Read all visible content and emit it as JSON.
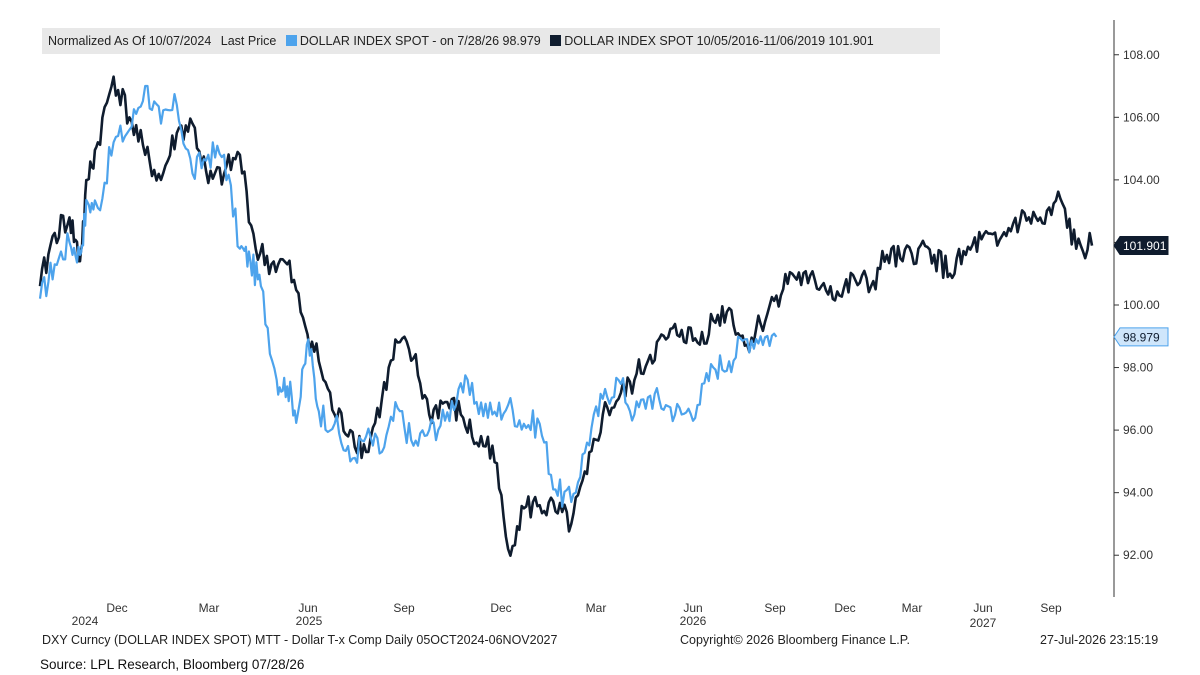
{
  "legend": {
    "header": "Normalized As Of 10/07/2024",
    "field": "Last Price",
    "items": [
      {
        "label": "DOLLAR INDEX SPOT -  on 7/28/26 98.979",
        "color": "#4da3ec"
      },
      {
        "label": "DOLLAR INDEX SPOT 10/05/2016-11/06/2019 101.901",
        "color": "#0f1c2e"
      }
    ]
  },
  "chart_data": {
    "type": "line",
    "x_ticks": [
      "Dec",
      "Mar",
      "Jun",
      "Sep",
      "Dec",
      "Mar",
      "Jun",
      "Sep",
      "Dec",
      "Mar",
      "Jun",
      "Sep"
    ],
    "year_labels": [
      "2024",
      "2025",
      "2026",
      "2027"
    ],
    "y_ticks": [
      "92.00",
      "94.00",
      "96.00",
      "98.00",
      "100.00",
      "102.00",
      "104.00",
      "106.00",
      "108.00"
    ],
    "ylim": [
      90.7,
      109.2
    ],
    "xlim": [
      0,
      1
    ],
    "y_axis_position": "right",
    "grid": false,
    "legend_position": "top",
    "series": [
      {
        "name": "DOLLAR INDEX SPOT -  on 7/28/26 98.979",
        "color": "#4da3ec",
        "last_value_label": "98.979",
        "x": [
          0.0,
          0.014,
          0.028,
          0.038,
          0.045,
          0.055,
          0.07,
          0.085,
          0.1,
          0.115,
          0.13,
          0.145,
          0.16,
          0.175,
          0.19,
          0.2,
          0.21,
          0.225,
          0.235,
          0.245,
          0.255,
          0.265,
          0.28,
          0.295,
          0.31,
          0.325,
          0.34,
          0.355,
          0.37,
          0.385,
          0.4,
          0.415,
          0.43,
          0.445,
          0.46,
          0.475,
          0.49,
          0.505,
          0.52,
          0.535,
          0.55,
          0.565,
          0.58,
          0.595,
          0.61,
          0.625,
          0.64,
          0.655,
          0.67,
          0.685,
          0.7
        ],
        "values": [
          100.2,
          101.3,
          102.0,
          101.6,
          103.3,
          103.1,
          105.2,
          105.6,
          107.0,
          105.8,
          106.4,
          104.2,
          104.8,
          104.8,
          101.8,
          101.4,
          100.6,
          97.6,
          97.4,
          96.5,
          98.9,
          96.6,
          96.2,
          95.0,
          95.8,
          95.3,
          96.7,
          95.5,
          96.0,
          96.3,
          97.5,
          96.9,
          96.5,
          96.8,
          96.2,
          96.2,
          94.1,
          93.7,
          95.6,
          97.0,
          97.6,
          96.5,
          97.1,
          96.8,
          96.5,
          96.8,
          98.0,
          98.2,
          98.9,
          99.0,
          98.98
        ]
      },
      {
        "name": "DOLLAR INDEX SPOT 10/05/2016-11/06/2019 101.901",
        "color": "#0f1c2e",
        "last_value_label": "101.901",
        "x": [
          0.0,
          0.014,
          0.028,
          0.038,
          0.045,
          0.055,
          0.07,
          0.085,
          0.1,
          0.115,
          0.13,
          0.145,
          0.16,
          0.175,
          0.19,
          0.205,
          0.22,
          0.235,
          0.25,
          0.265,
          0.28,
          0.295,
          0.31,
          0.325,
          0.34,
          0.355,
          0.37,
          0.385,
          0.4,
          0.415,
          0.43,
          0.445,
          0.46,
          0.475,
          0.49,
          0.505,
          0.52,
          0.535,
          0.55,
          0.565,
          0.58,
          0.595,
          0.61,
          0.625,
          0.64,
          0.655,
          0.67,
          0.685,
          0.7,
          0.715,
          0.73,
          0.745,
          0.76,
          0.775,
          0.79,
          0.805,
          0.82,
          0.835,
          0.85,
          0.865,
          0.88,
          0.895,
          0.91,
          0.925,
          0.94,
          0.955,
          0.97,
          0.985,
          1.0
        ],
        "values": [
          100.6,
          102.3,
          102.8,
          101.4,
          104.0,
          105.2,
          107.3,
          106.0,
          104.8,
          104.0,
          105.5,
          105.8,
          103.9,
          104.2,
          104.8,
          101.8,
          101.3,
          101.3,
          99.6,
          98.2,
          96.5,
          96.0,
          95.3,
          97.0,
          98.8,
          98.3,
          96.5,
          96.9,
          96.5,
          95.6,
          95.5,
          92.2,
          93.5,
          93.6,
          93.4,
          93.0,
          94.6,
          96.5,
          97.0,
          97.6,
          98.4,
          98.9,
          99.2,
          98.8,
          99.5,
          99.9,
          98.7,
          99.4,
          100.3,
          101.0,
          100.7,
          100.7,
          100.3,
          100.8,
          100.6,
          101.6,
          101.4,
          101.8,
          101.6,
          101.0,
          101.6,
          102.1,
          101.9,
          102.6,
          102.8,
          102.6,
          103.4,
          101.8,
          101.9
        ]
      }
    ]
  },
  "footer": {
    "left": "DXY Curncy (DOLLAR INDEX SPOT) MTT - Dollar T-x Comp Daily 05OCT2024-06NOV2027",
    "center": "Copyright© 2026 Bloomberg Finance L.P.",
    "right": "27-Jul-2026 23:15:19"
  },
  "source": "Source: LPL Research, Bloomberg 07/28/26"
}
